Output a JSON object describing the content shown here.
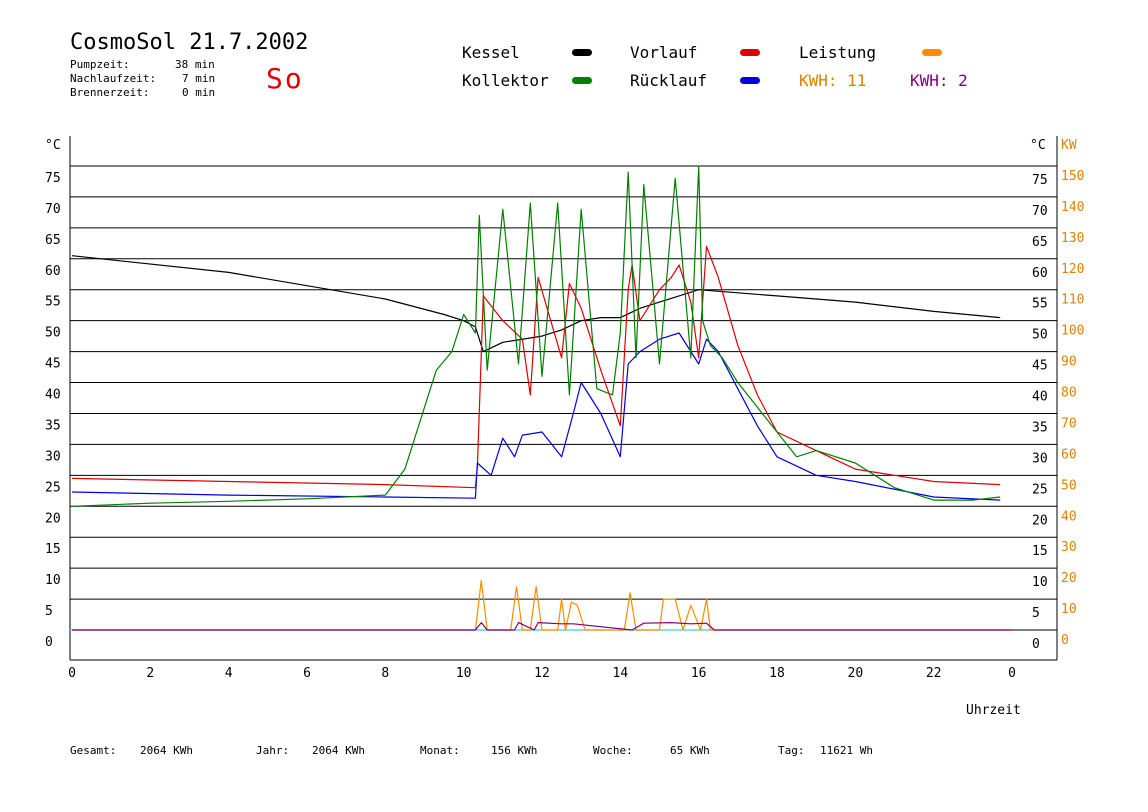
{
  "header": {
    "title": "CosmoSol 21.7.2002",
    "day": "So",
    "stats": [
      {
        "label": "Pumpzeit:",
        "value": "38 min"
      },
      {
        "label": "Nachlaufzeit:",
        "value": "7 min"
      },
      {
        "label": "Brennerzeit:",
        "value": "0 min"
      }
    ]
  },
  "legend": {
    "kessel": {
      "label": "Kessel",
      "color": "#000000"
    },
    "vorlauf": {
      "label": "Vorlauf",
      "color": "#e00000"
    },
    "leistung": {
      "label": "Leistung",
      "color": "#ff8c00"
    },
    "kollektor": {
      "label": "Kollektor",
      "color": "#008000"
    },
    "ruecklauf": {
      "label": "Rücklauf",
      "color": "#0000e0"
    },
    "kwh1": {
      "label": "KWH: 11",
      "color": "#e08000"
    },
    "kwh2": {
      "label": "KWH: 2",
      "color": "#800080"
    }
  },
  "footer": {
    "gesamt": {
      "label": "Gesamt:",
      "value": "2064 KWh"
    },
    "jahr": {
      "label": "Jahr:",
      "value": "2064 KWh"
    },
    "monat": {
      "label": "Monat:",
      "value": "156 KWh"
    },
    "woche": {
      "label": "Woche:",
      "value": "65 KWh"
    },
    "tag": {
      "label": "Tag:",
      "value": "11621 Wh"
    }
  },
  "chart_data": {
    "type": "line",
    "xlabel": "Uhrzeit",
    "ylabel_left": "°C",
    "ylabel_right": "°C",
    "ylabel_right2": "KW",
    "xlim": [
      0,
      24
    ],
    "ylim": [
      0,
      75
    ],
    "y2lim": [
      0,
      150
    ],
    "grid": true,
    "x_ticks": [
      "0",
      "2",
      "4",
      "6",
      "8",
      "10",
      "12",
      "14",
      "16",
      "18",
      "20",
      "22",
      "0"
    ],
    "y_ticks": [
      "0",
      "5",
      "10",
      "15",
      "20",
      "25",
      "30",
      "35",
      "40",
      "45",
      "50",
      "55",
      "60",
      "65",
      "70",
      "75"
    ],
    "y_ticks_right": [
      "0",
      "5",
      "10",
      "15",
      "20",
      "25",
      "30",
      "35",
      "40",
      "45",
      "50",
      "55",
      "60",
      "65",
      "70",
      "75"
    ],
    "y2_ticks": [
      "0",
      "10",
      "20",
      "30",
      "40",
      "50",
      "60",
      "70",
      "80",
      "90",
      "100",
      "110",
      "120",
      "130",
      "140",
      "150"
    ],
    "series": [
      {
        "name": "Kessel",
        "color": "#000000",
        "x": [
          0,
          4,
          8,
          9.5,
          10,
          10.3,
          10.5,
          11,
          12,
          12.5,
          13,
          13.5,
          14,
          14.5,
          15,
          15.5,
          16,
          17,
          18,
          20,
          22,
          23.7
        ],
        "y": [
          60.5,
          57.8,
          53.5,
          51,
          50,
          49,
          45,
          46.5,
          47.5,
          48.5,
          50,
          50.5,
          50.5,
          52,
          53,
          54,
          55,
          54.5,
          54,
          53,
          51.5,
          50.5
        ]
      },
      {
        "name": "Vorlauf",
        "color": "#e00000",
        "x": [
          0,
          4,
          8,
          10.3,
          10.35,
          10.5,
          11,
          11.5,
          11.7,
          11.9,
          12.5,
          12.7,
          13,
          13.5,
          14,
          14.2,
          14.3,
          14.5,
          15,
          15.3,
          15.5,
          15.8,
          16,
          16.2,
          16.5,
          17,
          17.5,
          18,
          19,
          20,
          22,
          23.7
        ],
        "y": [
          24.5,
          24,
          23.5,
          23,
          26.5,
          54,
          50,
          47,
          38,
          57,
          44,
          56,
          52,
          42,
          33,
          55,
          59,
          50,
          55,
          57,
          59,
          53,
          44,
          62,
          57,
          46,
          38,
          32,
          29,
          26,
          24,
          23.5
        ]
      },
      {
        "name": "Rücklauf",
        "color": "#0000e0",
        "x": [
          0,
          4,
          8,
          10.3,
          10.35,
          10.7,
          11,
          11.3,
          11.5,
          12,
          12.5,
          12.8,
          13,
          13.5,
          14,
          14.2,
          14.5,
          15,
          15.5,
          16,
          16.2,
          16.5,
          17,
          17.5,
          18,
          19,
          20,
          22,
          23.7
        ],
        "y": [
          22.3,
          21.8,
          21.5,
          21.3,
          27,
          25,
          31,
          28,
          31.5,
          32,
          28,
          35,
          40,
          35,
          28,
          43,
          45,
          47,
          48,
          43,
          47,
          45,
          39,
          33,
          28,
          25,
          24,
          21.5,
          21
        ]
      },
      {
        "name": "Kollektor",
        "color": "#008000",
        "x": [
          0,
          2,
          4,
          6,
          8,
          8.5,
          9,
          9.3,
          9.7,
          10,
          10.3,
          10.4,
          10.6,
          11,
          11.4,
          11.7,
          12,
          12.4,
          12.7,
          13,
          13.4,
          13.8,
          14,
          14.2,
          14.4,
          14.6,
          15,
          15.4,
          15.8,
          16,
          16.1,
          16.3,
          16.6,
          17,
          17.5,
          18,
          18.5,
          19,
          20,
          21,
          22,
          23,
          23.7
        ],
        "y": [
          20,
          20.5,
          20.8,
          21.2,
          21.8,
          26,
          36,
          42,
          45,
          51,
          48,
          67,
          42,
          68,
          43,
          69,
          41,
          69,
          38,
          68,
          39,
          38,
          48,
          74,
          44,
          72,
          43,
          73,
          44,
          75,
          50,
          46,
          44,
          40,
          36,
          32,
          28,
          29,
          27,
          23,
          21,
          21,
          21.5
        ]
      },
      {
        "name": "Leistung",
        "color": "#ff8c00",
        "x": [
          0,
          10.3,
          10.45,
          10.6,
          10.8,
          11.2,
          11.35,
          11.5,
          11.7,
          11.85,
          12,
          12.4,
          12.5,
          12.6,
          12.75,
          12.9,
          13.1,
          14.1,
          14.25,
          14.4,
          14.6,
          15,
          15.1,
          15.4,
          15.6,
          15.8,
          16.05,
          16.2,
          16.3,
          16.4,
          24
        ],
        "y": [
          0,
          0,
          8,
          0,
          0,
          0,
          7,
          0,
          0,
          7,
          0,
          0,
          5,
          0,
          4.5,
          4,
          0,
          0,
          6,
          0,
          0,
          0,
          5,
          5,
          0,
          4,
          0,
          5,
          0,
          0,
          0
        ]
      },
      {
        "name": "KWH",
        "color": "#800080",
        "x": [
          0,
          10.3,
          10.45,
          10.6,
          11.3,
          11.4,
          11.8,
          11.9,
          12.5,
          12.8,
          14.3,
          14.6,
          15.3,
          15.8,
          16.2,
          16.4,
          24
        ],
        "y": [
          0,
          0,
          1.2,
          0,
          0,
          1.2,
          0,
          1.2,
          1,
          1,
          0,
          1.1,
          1.2,
          1,
          1.1,
          0,
          0
        ]
      }
    ]
  }
}
